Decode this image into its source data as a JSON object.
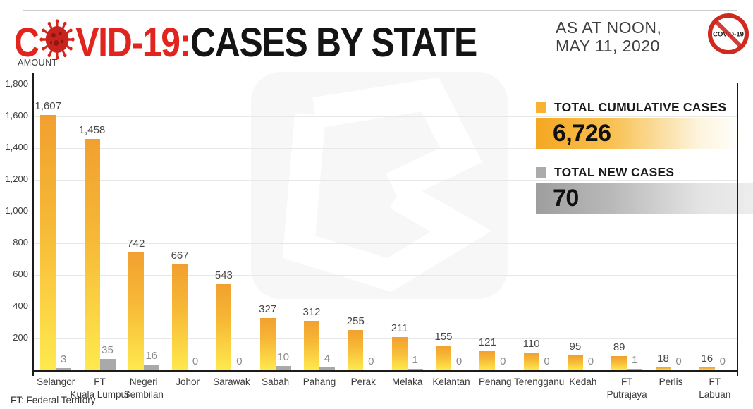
{
  "header": {
    "title_prefix": "C",
    "title_suffix": "VID-19:",
    "title_main": "CASES BY STATE",
    "as_at_line1": "AS AT NOON,",
    "as_at_line2": "MAY 11, 2020",
    "badge_label": "COVID-19"
  },
  "axis": {
    "ylabel": "AMOUNT"
  },
  "legend": {
    "cumulative": {
      "label": "TOTAL CUMULATIVE CASES",
      "value": "6,726"
    },
    "new": {
      "label": "TOTAL NEW CASES",
      "value": "70"
    }
  },
  "footer": {
    "note": "FT: Federal Territory"
  },
  "colors": {
    "title_red": "#E2241E",
    "bar_orange_top": "#F1A02F",
    "bar_yellow_bottom": "#FFE94E",
    "bar_gray": "#A9A9A9",
    "legend_orange": "#F9B233",
    "legend_gray": "#ABABAB"
  },
  "chart_data": {
    "type": "bar",
    "title": "COVID-19: CASES BY STATE",
    "subtitle": "AS AT NOON, MAY 11, 2020",
    "xlabel": "",
    "ylabel": "AMOUNT",
    "ylim": [
      0,
      1800
    ],
    "ytick_step": 200,
    "ytick_labels": [
      "200",
      "400",
      "600",
      "800",
      "1,000",
      "1,200",
      "1,400",
      "1,600",
      "1,800"
    ],
    "grid": true,
    "legend_position": "right",
    "categories": [
      "Selangor",
      "FT\nKuala Lumpur",
      "Negeri\nSembilan",
      "Johor",
      "Sarawak",
      "Sabah",
      "Pahang",
      "Perak",
      "Melaka",
      "Kelantan",
      "Penang",
      "Terengganu",
      "Kedah",
      "FT\nPutrajaya",
      "Perlis",
      "FT\nLabuan"
    ],
    "series": [
      {
        "name": "TOTAL CUMULATIVE CASES",
        "values": [
          1607,
          1458,
          742,
          667,
          543,
          327,
          312,
          255,
          211,
          155,
          121,
          110,
          95,
          89,
          18,
          16
        ],
        "labels": [
          "1,607",
          "1,458",
          "742",
          "667",
          "543",
          "327",
          "312",
          "255",
          "211",
          "155",
          "121",
          "110",
          "95",
          "89",
          "18",
          "16"
        ],
        "total": 6726
      },
      {
        "name": "TOTAL NEW CASES",
        "values": [
          3,
          35,
          16,
          0,
          0,
          10,
          4,
          0,
          1,
          0,
          0,
          0,
          0,
          1,
          0,
          0
        ],
        "labels": [
          "3",
          "35",
          "16",
          "0",
          "0",
          "10",
          "4",
          "0",
          "1",
          "0",
          "0",
          "0",
          "0",
          "1",
          "0",
          "0"
        ],
        "total": 70
      }
    ]
  }
}
